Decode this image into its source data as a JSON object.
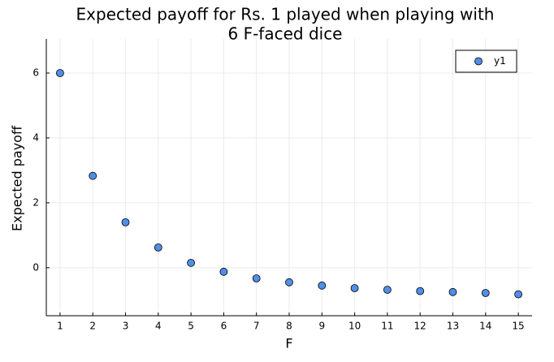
{
  "chart_data": {
    "type": "scatter",
    "title": [
      "Expected payoff for Rs. 1 played when playing with",
      "6 F-faced dice"
    ],
    "x_label": "F",
    "y_label": "Expected payoff",
    "series": [
      {
        "name": "y1",
        "color": "#4f8fe8",
        "x": [
          1,
          2,
          3,
          4,
          5,
          6,
          7,
          8,
          9,
          10,
          11,
          12,
          13,
          14,
          15
        ],
        "values": [
          6,
          2.83,
          1.4,
          0.625,
          0.15,
          -0.125,
          -0.33,
          -0.45,
          -0.55,
          -0.63,
          -0.68,
          -0.72,
          -0.75,
          -0.78,
          -0.82
        ]
      }
    ],
    "xlim": [
      0.58,
      15.42
    ],
    "ylim": [
      -1.48,
      7.05
    ],
    "xticks": [
      1,
      2,
      3,
      4,
      5,
      6,
      7,
      8,
      9,
      10,
      11,
      12,
      13,
      14,
      15
    ],
    "yticks": [
      0,
      2,
      4,
      6
    ],
    "grid": true,
    "legend": "top-right"
  }
}
